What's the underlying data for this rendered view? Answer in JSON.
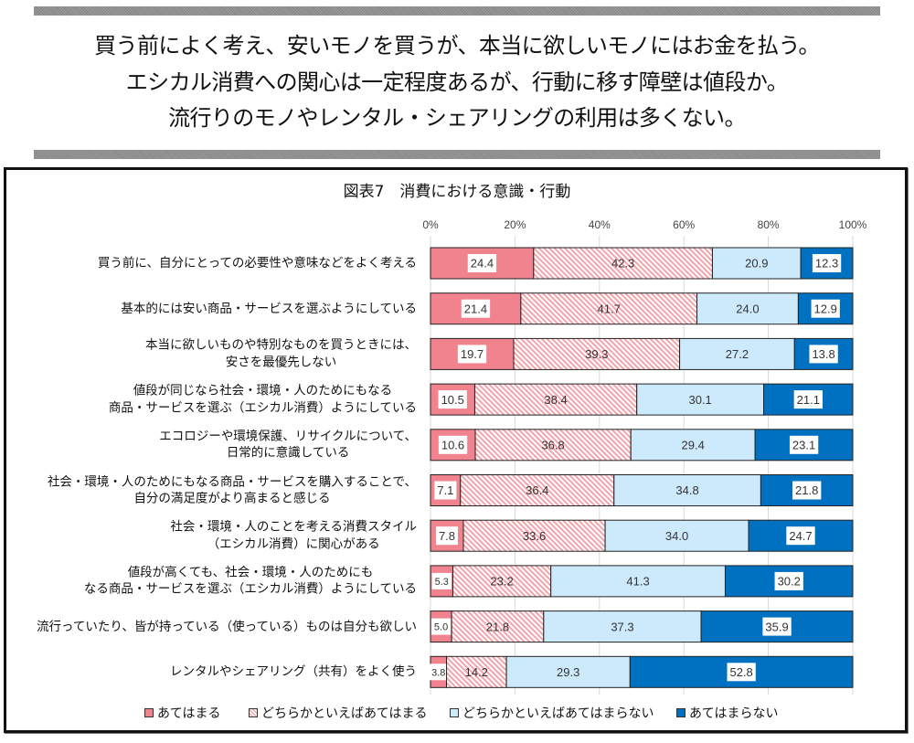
{
  "headline": {
    "lines": [
      "買う前によく考え、安いモノを買うが、本当に欲しいモノにはお金を払う。",
      "エシカル消費への関心は一定程度あるが、行動に移す障壁は値段か。",
      "流行りのモノやレンタル・シェアリングの利用は多くない。"
    ]
  },
  "chart_data": {
    "type": "bar",
    "orientation": "horizontal",
    "stacking": "percent",
    "title": "図表7　消費における意識・行動",
    "xlabel": "",
    "ylabel": "",
    "xlim": [
      0,
      100
    ],
    "x_ticks": [
      "0%",
      "20%",
      "40%",
      "60%",
      "80%",
      "100%"
    ],
    "grid": true,
    "legend_position": "bottom",
    "categories": [
      "買う前に、自分にとっての必要性や意味などをよく考える",
      "基本的には安い商品・サービスを選ぶようにしている",
      "本当に欲しいものや特別なものを買うときには、安さを最優先しない",
      "値段が同じなら社会・環境・人のためにもなる商品・サービスを選ぶ（エシカル消費）ようにしている",
      "エコロジーや環境保護、リサイクルについて、日常的に意識している",
      "社会・環境・人のためにもなる商品・サービスを購入することで、自分の満足度がより高まると感じる",
      "社会・環境・人のことを考える消費スタイル（エシカル消費）に関心がある",
      "値段が高くても、社会・環境・人のためにもなる商品・サービスを選ぶ（エシカル消費）ようにしている",
      "流行っていたり、皆が持っている（使っている）ものは自分も欲しい",
      "レンタルやシェアリング（共有）をよく使う"
    ],
    "category_lines": [
      [
        "買う前に、自分にとっての必要性や意味などをよく考える"
      ],
      [
        "基本的には安い商品・サービスを選ぶようにしている"
      ],
      [
        "本当に欲しいものや特別なものを買うときには、",
        "安さを最優先しない"
      ],
      [
        "値段が同じなら社会・環境・人のためにもなる",
        "商品・サービスを選ぶ（エシカル消費）ようにしている"
      ],
      [
        "エコロジーや環境保護、リサイクルについて、",
        "日常的に意識している"
      ],
      [
        "社会・環境・人のためにもなる商品・サービスを購入することで、",
        "自分の満足度がより高まると感じる"
      ],
      [
        "社会・環境・人のことを考える消費スタイル",
        "（エシカル消費）に関心がある"
      ],
      [
        "値段が高くても、社会・環境・人のためにも",
        "なる商品・サービスを選ぶ（エシカル消費）ようにしている"
      ],
      [
        "流行っていたり、皆が持っている（使っている）ものは自分も欲しい"
      ],
      [
        "レンタルやシェアリング（共有）をよく使う"
      ]
    ],
    "series": [
      {
        "name": "あてはまる",
        "color": "#f0838e",
        "fill": "solid",
        "label_box": true,
        "values": [
          24.4,
          21.4,
          19.7,
          10.5,
          10.6,
          7.1,
          7.8,
          5.3,
          5.0,
          3.8
        ],
        "labels": [
          "24.4",
          "21.4",
          "19.7",
          "10.5",
          "10.6",
          "7.1",
          "7.8",
          "5.3",
          "5.0",
          "3.8"
        ]
      },
      {
        "name": "どちらかといえばあてはまる",
        "color": "#f4a3ab",
        "fill": "hatch",
        "label_box": false,
        "values": [
          42.3,
          41.7,
          39.3,
          38.4,
          36.8,
          36.4,
          33.6,
          23.2,
          21.8,
          14.2
        ],
        "labels": [
          "42.3",
          "41.7",
          "39.3",
          "38.4",
          "36.8",
          "36.4",
          "33.6",
          "23.2",
          "21.8",
          "14.2"
        ]
      },
      {
        "name": "どちらかといえばあてはまらない",
        "color": "#cdeafc",
        "fill": "solid",
        "label_box": false,
        "values": [
          20.9,
          24.0,
          27.2,
          30.1,
          29.4,
          34.8,
          34.0,
          41.3,
          37.3,
          29.3
        ],
        "labels": [
          "20.9",
          "24.0",
          "27.2",
          "30.1",
          "29.4",
          "34.8",
          "34.0",
          "41.3",
          "37.3",
          "29.3"
        ]
      },
      {
        "name": "あてはまらない",
        "color": "#0070c0",
        "fill": "solid",
        "label_box": true,
        "values": [
          12.3,
          12.9,
          13.8,
          21.1,
          23.1,
          21.8,
          24.7,
          30.2,
          35.9,
          52.8
        ],
        "labels": [
          "12.3",
          "12.9",
          "13.8",
          "21.1",
          "23.1",
          "21.8",
          "24.7",
          "30.2",
          "35.9",
          "52.8"
        ]
      }
    ]
  }
}
